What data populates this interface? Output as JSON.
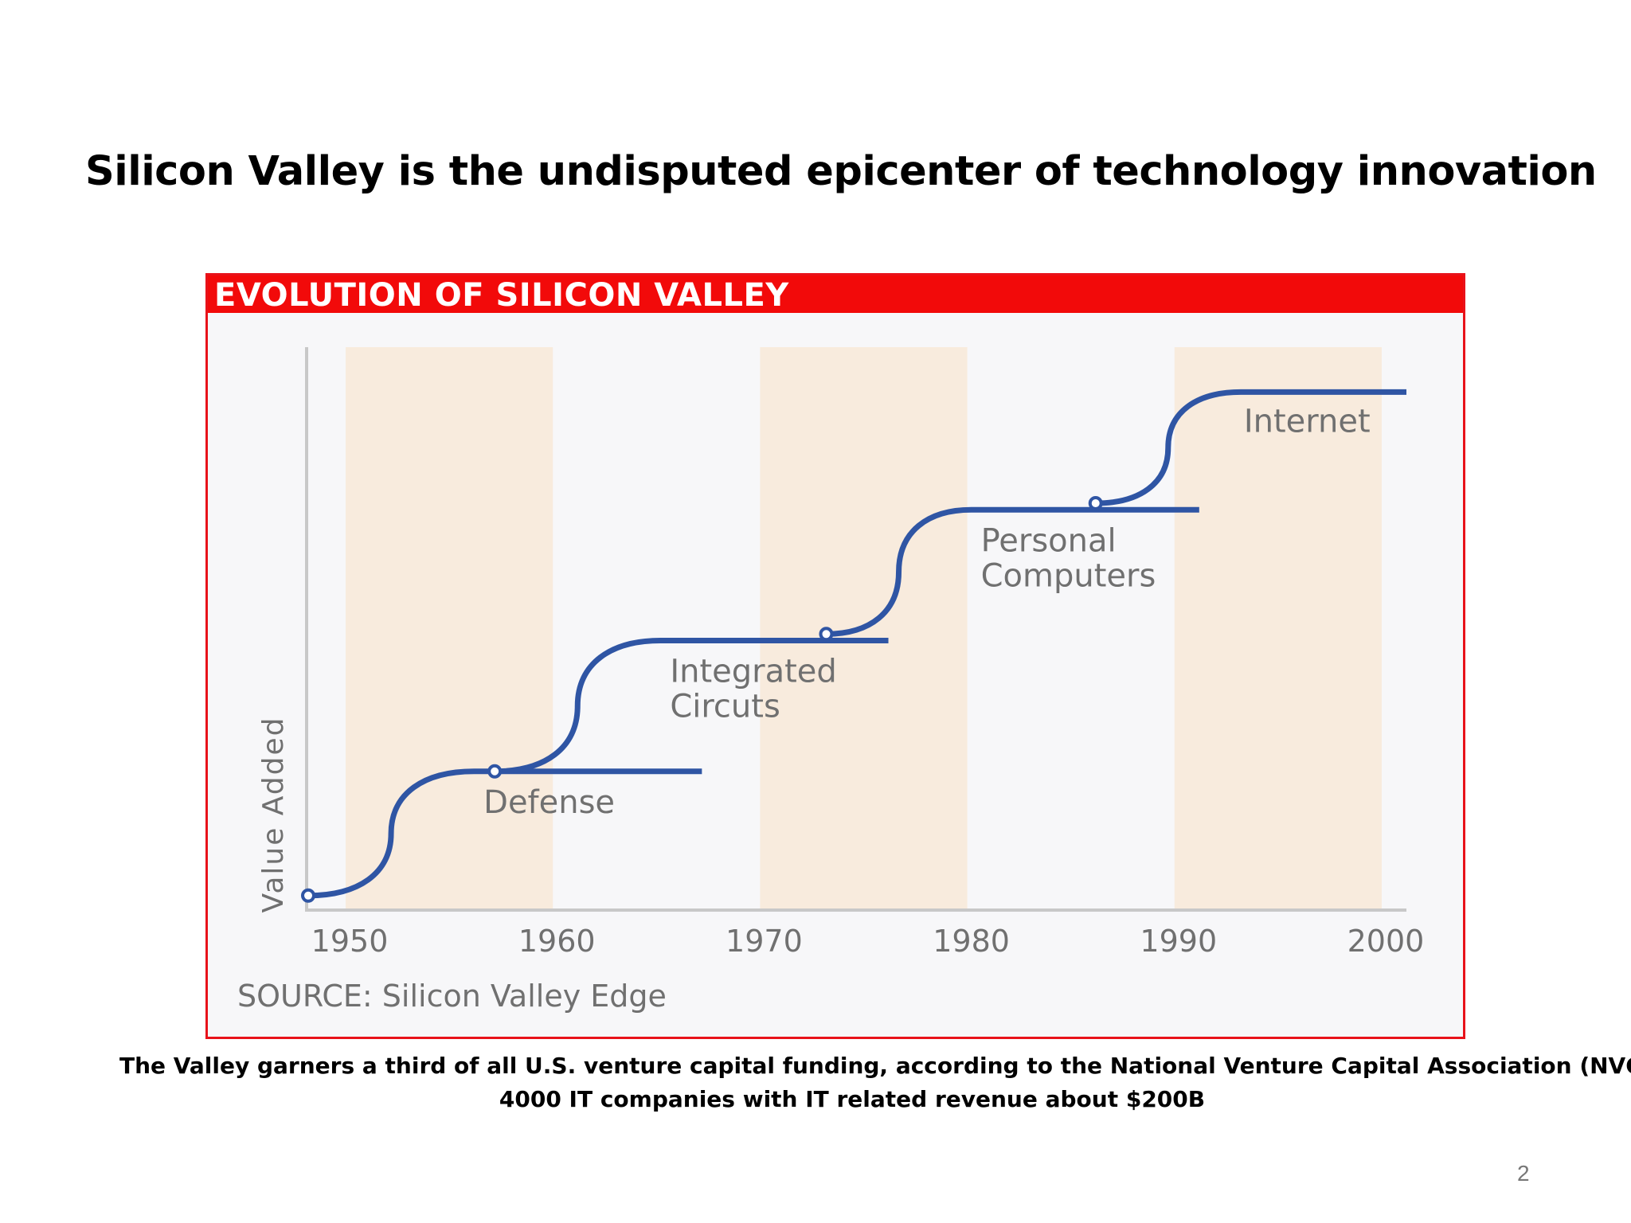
{
  "slide": {
    "title": "Silicon Valley is the undisputed epicenter of technology innovation",
    "caption_line1": "The Valley garners a third of all U.S. venture capital funding, according to the National Venture Capital Association (NVCA).",
    "caption_line2": "4000 IT companies with IT related revenue about $200B",
    "page_number": "2"
  },
  "chart_data": {
    "type": "line",
    "title": "EVOLUTION OF SILICON VALLEY",
    "ylabel": "Value Added",
    "xlabel": "",
    "source": "SOURCE: Silicon Valley Edge",
    "xlim": [
      1948,
      2001
    ],
    "ylim": [
      0,
      4
    ],
    "x_ticks": [
      "1950",
      "1960",
      "1970",
      "1980",
      "1990",
      "2000"
    ],
    "shaded_decades": [
      [
        1950,
        1960
      ],
      [
        1970,
        1980
      ],
      [
        1990,
        2000
      ]
    ],
    "grid": false,
    "series": [
      {
        "name": "Defense",
        "start": 1948,
        "rise_end": 1956,
        "end": 1967,
        "y_start": 0.05,
        "y_end": 1.0
      },
      {
        "name": "Integrated Circuts",
        "start": 1957,
        "rise_end": 1965,
        "end": 1976,
        "y_start": 1.0,
        "y_end": 2.0
      },
      {
        "name": "Personal Computers",
        "start": 1973,
        "rise_end": 1980,
        "end": 1991,
        "y_start": 2.05,
        "y_end": 3.0
      },
      {
        "name": "Internet",
        "start": 1986,
        "rise_end": 1993,
        "end": 2001,
        "y_start": 3.05,
        "y_end": 3.9
      }
    ],
    "colors": {
      "header": "#f20a0a",
      "line": "#2f55a4",
      "band": "#f8ebdd",
      "text": "#707070",
      "axis": "#c8c8c8"
    }
  }
}
